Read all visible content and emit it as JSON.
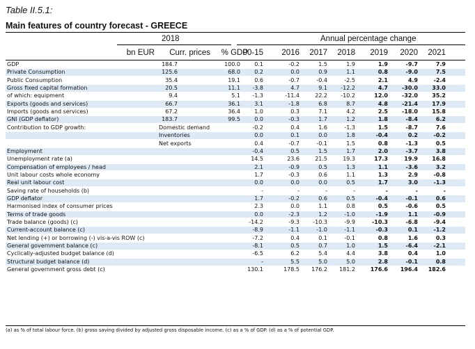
{
  "caption": "Table II.5.1:",
  "title": "Main features of country forecast - GREECE",
  "header": {
    "year_2018": "2018",
    "annual_change": "Annual percentage change",
    "col_bn_eur": "bn EUR",
    "col_curr_prices": "Curr. prices",
    "col_pct_gdp": "% GDP",
    "years": [
      "00-15",
      "2016",
      "2017",
      "2018",
      "2019",
      "2020",
      "2021"
    ]
  },
  "rows": [
    {
      "label": "GDP",
      "sub": "",
      "band": false,
      "curr": "184.7",
      "pct": "100.0",
      "vals": [
        "0.1",
        "-0.2",
        "1.5",
        "1.9",
        "1.9",
        "-9.7",
        "7.9"
      ]
    },
    {
      "label": "Private Consumption",
      "sub": "",
      "band": true,
      "curr": "125.6",
      "pct": "68.0",
      "vals": [
        "0.2",
        "0.0",
        "0.9",
        "1.1",
        "0.8",
        "-9.0",
        "7.5"
      ]
    },
    {
      "label": "Public Consumption",
      "sub": "",
      "band": false,
      "curr": "35.4",
      "pct": "19.1",
      "vals": [
        "0.6",
        "-0.7",
        "-0.4",
        "-2.5",
        "2.1",
        "4.9",
        "-2.4"
      ]
    },
    {
      "label": "Gross fixed capital formation",
      "sub": "",
      "band": true,
      "curr": "20.5",
      "pct": "11.1",
      "vals": [
        "-3.8",
        "4.7",
        "9.1",
        "-12.2",
        "4.7",
        "-30.0",
        "33.0"
      ]
    },
    {
      "label": "of which: equipment",
      "sub": "",
      "band": false,
      "curr": "9.4",
      "pct": "5.1",
      "vals": [
        "-1.3",
        "-11.4",
        "22.2",
        "-10.2",
        "12.0",
        "-32.0",
        "35.2"
      ]
    },
    {
      "label": "Exports (goods and services)",
      "sub": "",
      "band": true,
      "curr": "66.7",
      "pct": "36.1",
      "vals": [
        "3.1",
        "-1.8",
        "6.8",
        "8.7",
        "4.8",
        "-21.4",
        "17.9"
      ]
    },
    {
      "label": "Imports (goods and services)",
      "sub": "",
      "band": false,
      "curr": "67.2",
      "pct": "36.4",
      "vals": [
        "1.0",
        "0.3",
        "7.1",
        "4.2",
        "2.5",
        "-18.0",
        "15.8"
      ]
    },
    {
      "label": "GNI (GDP deflator)",
      "sub": "",
      "band": true,
      "curr": "183.7",
      "pct": "99.5",
      "vals": [
        "0.0",
        "-0.3",
        "1.7",
        "1.2",
        "1.8",
        "-8.4",
        "6.2"
      ]
    },
    {
      "label": "Contribution to GDP growth:",
      "sub": "Domestic demand",
      "band": false,
      "curr": "",
      "pct": "",
      "vals": [
        "-0.2",
        "0.4",
        "1.6",
        "-1.3",
        "1.5",
        "-8.7",
        "7.6"
      ]
    },
    {
      "label": "",
      "sub": "Inventories",
      "band": true,
      "curr": "",
      "pct": "",
      "vals": [
        "0.0",
        "0.1",
        "0.0",
        "1.8",
        "-0.4",
        "0.2",
        "-0.2"
      ]
    },
    {
      "label": "",
      "sub": "Net exports",
      "band": false,
      "curr": "",
      "pct": "",
      "vals": [
        "0.4",
        "-0.7",
        "-0.1",
        "1.5",
        "0.8",
        "-1.3",
        "0.5"
      ]
    },
    {
      "label": "Employment",
      "sub": "",
      "band": true,
      "curr": "",
      "pct": "",
      "vals": [
        "-0.4",
        "0.5",
        "1.5",
        "1.7",
        "2.0",
        "-3.7",
        "3.8"
      ]
    },
    {
      "label": "Unemployment rate (a)",
      "sub": "",
      "band": false,
      "curr": "",
      "pct": "",
      "vals": [
        "14.5",
        "23.6",
        "21.5",
        "19.3",
        "17.3",
        "19.9",
        "16.8"
      ]
    },
    {
      "label": "Compensation of employees / head",
      "sub": "",
      "band": true,
      "curr": "",
      "pct": "",
      "vals": [
        "2.1",
        "-0.9",
        "0.5",
        "1.3",
        "1.1",
        "-3.6",
        "3.2"
      ]
    },
    {
      "label": "Unit labour costs whole economy",
      "sub": "",
      "band": false,
      "curr": "",
      "pct": "",
      "vals": [
        "1.7",
        "-0.3",
        "0.6",
        "1.1",
        "1.3",
        "2.9",
        "-0.8"
      ]
    },
    {
      "label": "Real unit labour cost",
      "sub": "",
      "band": true,
      "curr": "",
      "pct": "",
      "vals": [
        "0.0",
        "0.0",
        "0.0",
        "0.5",
        "1.7",
        "3.0",
        "-1.3"
      ]
    },
    {
      "label": "Saving rate of households (b)",
      "sub": "",
      "band": false,
      "curr": "",
      "pct": "",
      "vals": [
        "-",
        "-",
        "-",
        "-",
        "-",
        "-",
        "-"
      ]
    },
    {
      "label": "GDP deflator",
      "sub": "",
      "band": true,
      "curr": "",
      "pct": "",
      "vals": [
        "1.7",
        "-0.2",
        "0.6",
        "0.5",
        "-0.4",
        "-0.1",
        "0.6"
      ]
    },
    {
      "label": "Harmonised index of consumer prices",
      "sub": "",
      "band": false,
      "curr": "",
      "pct": "",
      "vals": [
        "2.3",
        "0.0",
        "1.1",
        "0.8",
        "0.5",
        "-0.6",
        "0.5"
      ]
    },
    {
      "label": "Terms of trade goods",
      "sub": "",
      "band": true,
      "curr": "",
      "pct": "",
      "vals": [
        "0.0",
        "-2.3",
        "1.2",
        "-1.0",
        "-1.9",
        "1.1",
        "-0.9"
      ]
    },
    {
      "label": "Trade balance (goods) (c)",
      "sub": "",
      "band": false,
      "curr": "",
      "pct": "",
      "vals": [
        "-14.2",
        "-9.3",
        "-10.3",
        "-9.9",
        "-10.3",
        "-6.8",
        "-9.4"
      ]
    },
    {
      "label": "Current-account balance (c)",
      "sub": "",
      "band": true,
      "curr": "",
      "pct": "",
      "vals": [
        "-8.9",
        "-1.1",
        "-1.0",
        "-1.1",
        "-0.3",
        "0.1",
        "-1.2"
      ]
    },
    {
      "label": "Net lending (+) or borrowing (-) vis-a-vis ROW (c)",
      "sub": "",
      "band": false,
      "curr": "",
      "pct": "",
      "vals": [
        "-7.2",
        "0.4",
        "0.1",
        "-0.1",
        "0.8",
        "1.6",
        "0.3"
      ]
    },
    {
      "label": "General government balance (c)",
      "sub": "",
      "band": true,
      "curr": "",
      "pct": "",
      "vals": [
        "-8.1",
        "0.5",
        "0.7",
        "1.0",
        "1.5",
        "-6.4",
        "-2.1"
      ]
    },
    {
      "label": "Cyclically-adjusted budget balance (d)",
      "sub": "",
      "band": false,
      "curr": "",
      "pct": "",
      "vals": [
        "-6.5",
        "6.2",
        "5.4",
        "4.4",
        "3.8",
        "0.4",
        "1.0"
      ]
    },
    {
      "label": "Structural budget balance (d)",
      "sub": "",
      "band": true,
      "curr": "",
      "pct": "",
      "vals": [
        "-",
        "5.5",
        "5.0",
        "5.0",
        "2.8",
        "-0.1",
        "0.8"
      ]
    },
    {
      "label": "General government gross debt (c)",
      "sub": "",
      "band": false,
      "curr": "",
      "pct": "",
      "vals": [
        "130.1",
        "178.5",
        "176.2",
        "181.2",
        "176.6",
        "196.4",
        "182.6"
      ]
    }
  ],
  "footnote": "(a) as % of total labour force. (b) gross saving divided by adjusted gross disposable income. (c) as a % of GDP. (d) as a % of potential GDP."
}
